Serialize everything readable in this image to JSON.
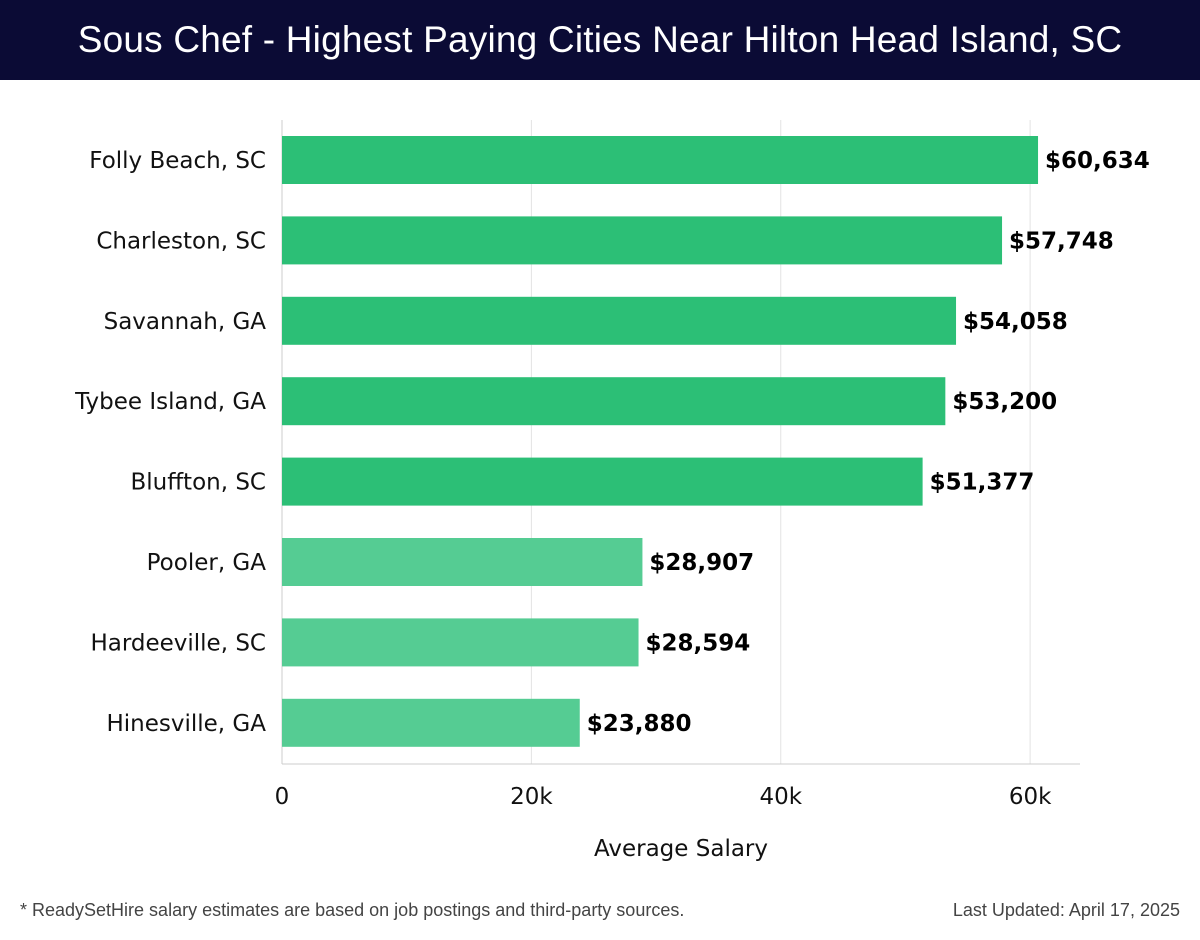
{
  "header": {
    "title": "Sous Chef - Highest Paying Cities Near Hilton Head Island, SC"
  },
  "chart_data": {
    "type": "bar",
    "orientation": "horizontal",
    "categories": [
      "Folly Beach, SC",
      "Charleston, SC",
      "Savannah, GA",
      "Tybee Island, GA",
      "Bluffton, SC",
      "Pooler, GA",
      "Hardeeville, SC",
      "Hinesville, GA"
    ],
    "values": [
      60634,
      57748,
      54058,
      53200,
      51377,
      28907,
      28594,
      23880
    ],
    "value_labels": [
      "$60,634",
      "$57,748",
      "$54,058",
      "$53,200",
      "$51,377",
      "$28,907",
      "$28,594",
      "$23,880"
    ],
    "xlabel": "Average Salary",
    "ylabel": "",
    "xlim": [
      0,
      64000
    ],
    "xticks": [
      0,
      20000,
      40000,
      60000
    ],
    "xtick_labels": [
      "0",
      "20k",
      "40k",
      "60k"
    ],
    "grid": true,
    "colors": {
      "bar_high": "#2cbf76",
      "bar_low": "#55cc93",
      "grid": "#e3e3e3",
      "axis": "#cccccc",
      "label_text": "#111111",
      "value_text": "#000000"
    }
  },
  "footer": {
    "note": "* ReadySetHire salary estimates are based on job postings and third-party sources.",
    "updated": "Last Updated: April 17, 2025"
  }
}
